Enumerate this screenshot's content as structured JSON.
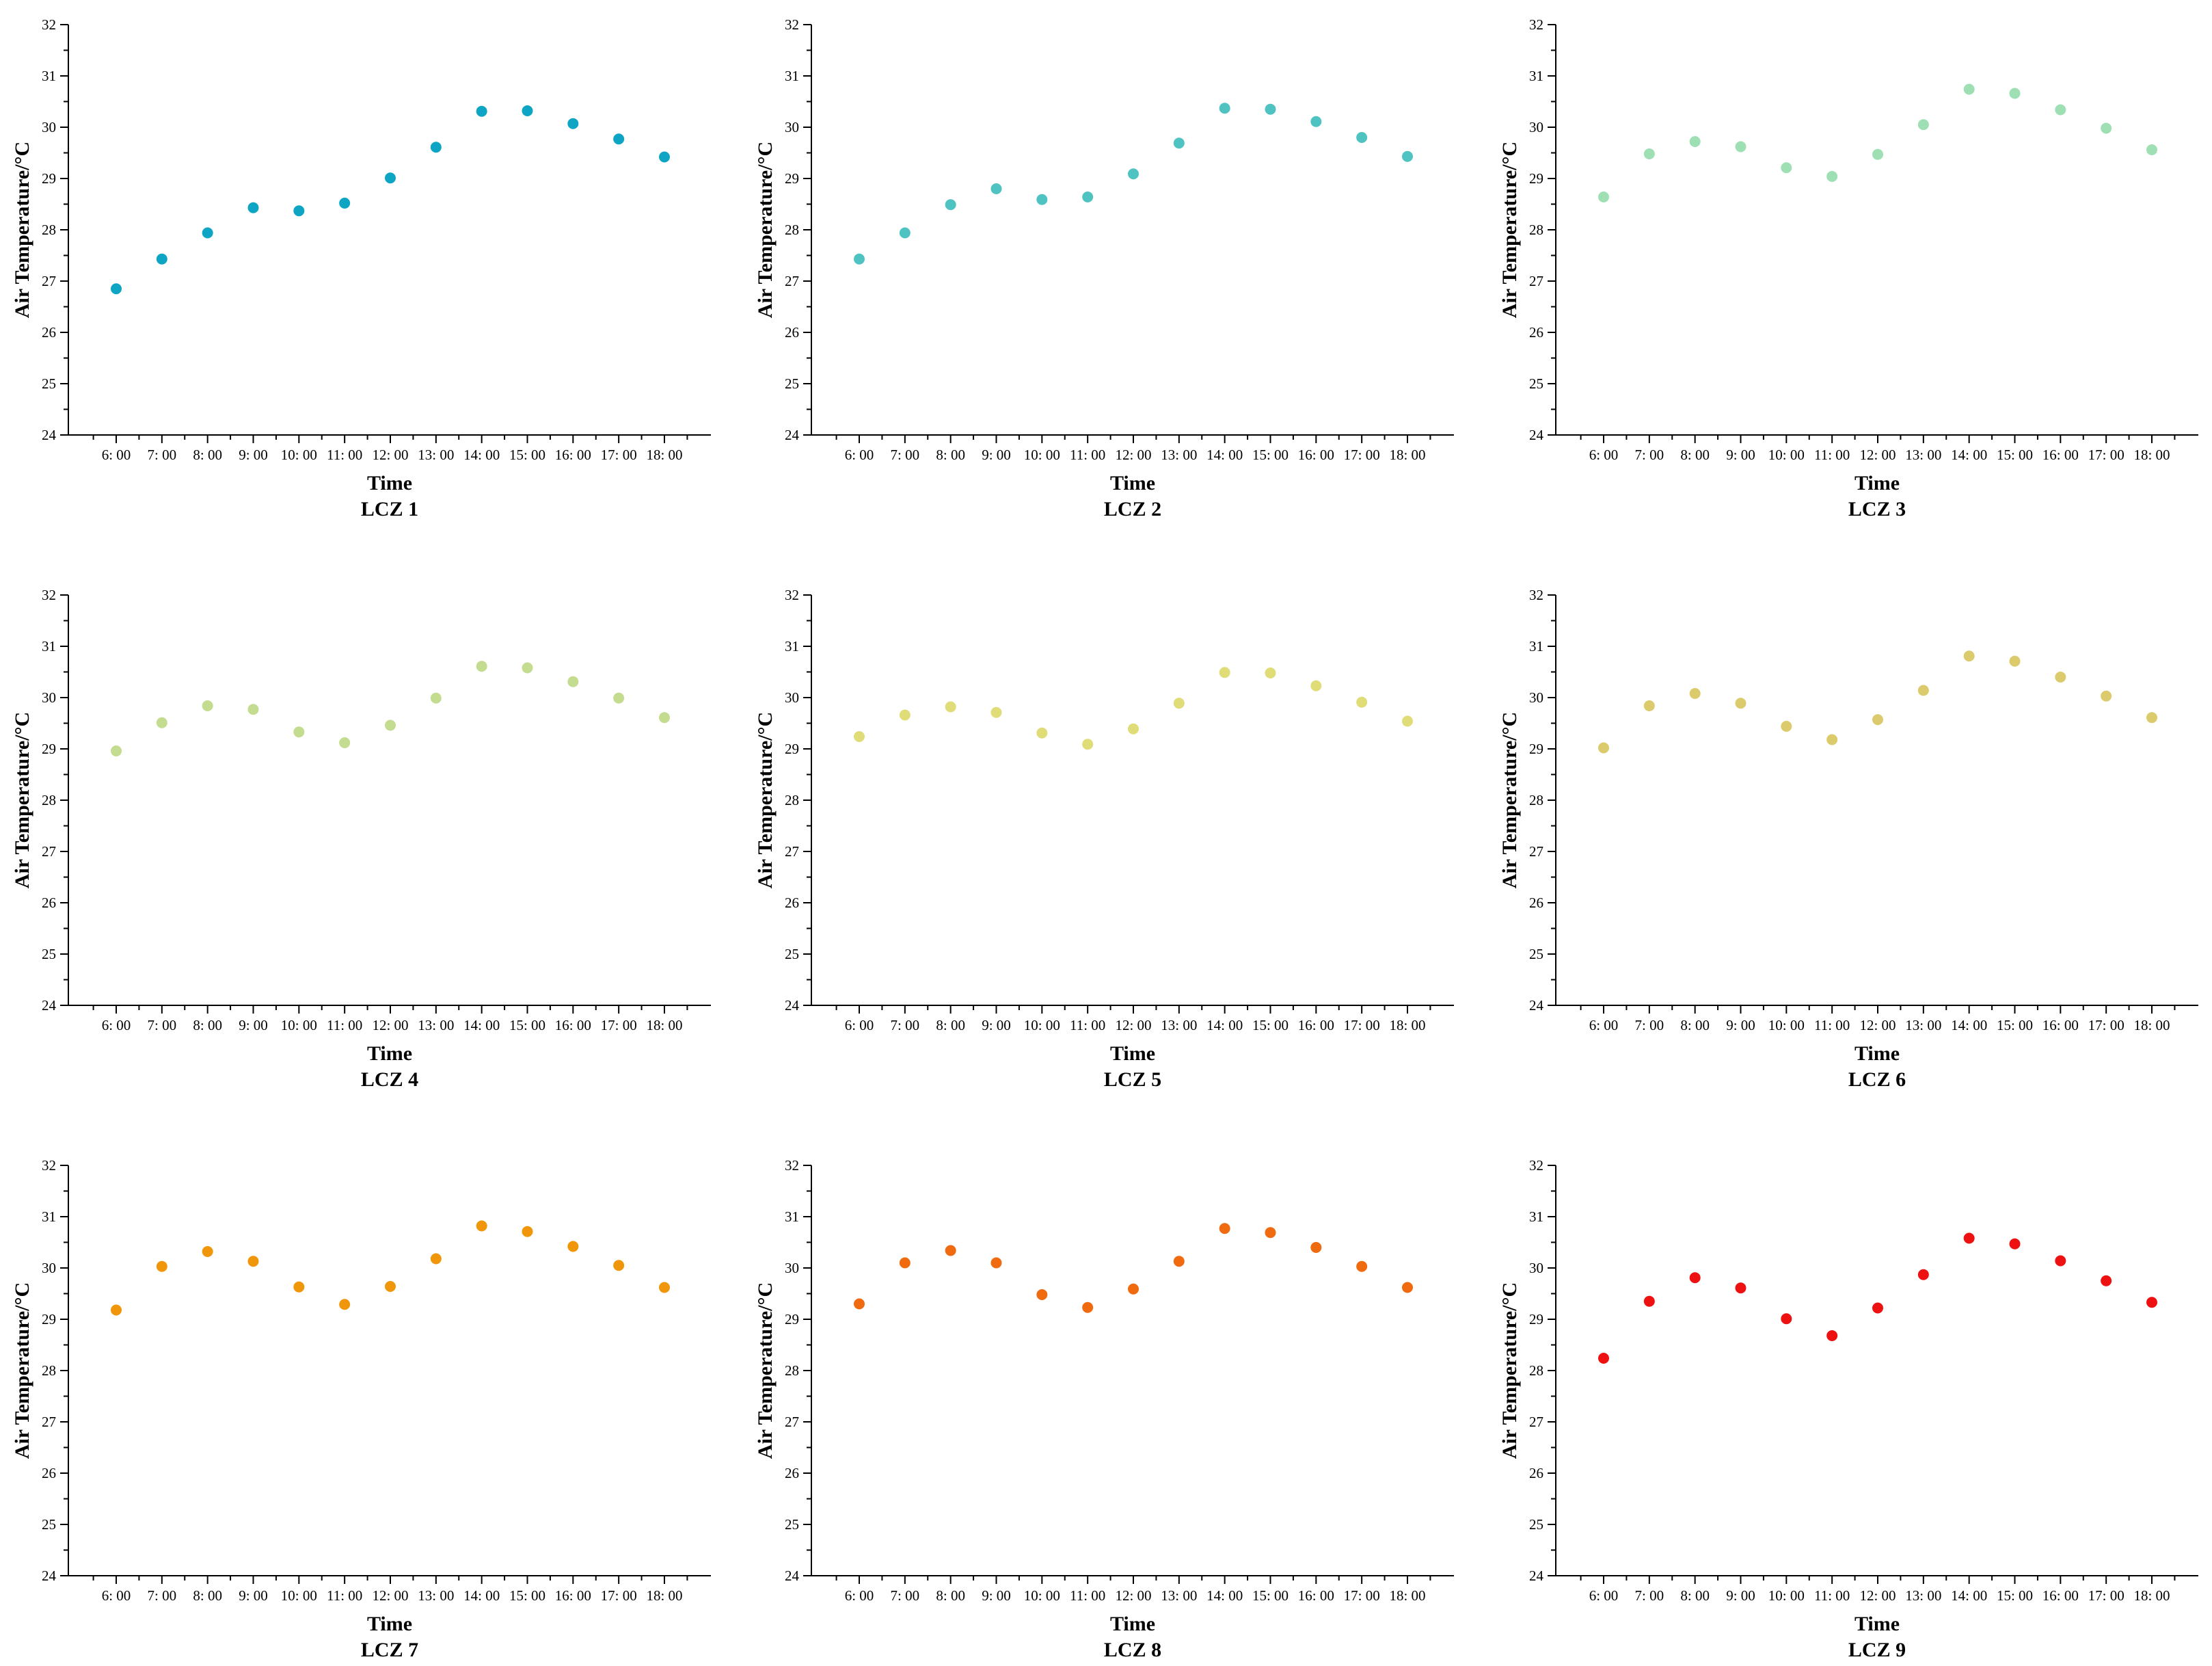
{
  "chart_data": [
    {
      "type": "scatter",
      "title": "LCZ 1",
      "xlabel": "Time",
      "ylabel": "Air Temperature/°C",
      "color": "#0ea5c4",
      "categories": [
        "6: 00",
        "7: 00",
        "8: 00",
        "9: 00",
        "10: 00",
        "11: 00",
        "12: 00",
        "13: 00",
        "14: 00",
        "15: 00",
        "16: 00",
        "17: 00",
        "18: 00"
      ],
      "values": [
        26.85,
        27.43,
        27.94,
        28.43,
        28.37,
        28.52,
        29.01,
        29.61,
        30.31,
        30.32,
        30.07,
        29.77,
        29.42
      ],
      "ylim": [
        24,
        32
      ],
      "yticks": [
        "24",
        "25",
        "26",
        "27",
        "28",
        "29",
        "30",
        "31",
        "32"
      ]
    },
    {
      "type": "scatter",
      "title": "LCZ 2",
      "xlabel": "Time",
      "ylabel": "Air Temperature/°C",
      "color": "#4fc3c1",
      "categories": [
        "6: 00",
        "7: 00",
        "8: 00",
        "9: 00",
        "10: 00",
        "11: 00",
        "12: 00",
        "13: 00",
        "14: 00",
        "15: 00",
        "16: 00",
        "17: 00",
        "18: 00"
      ],
      "values": [
        27.43,
        27.94,
        28.49,
        28.8,
        28.59,
        28.64,
        29.09,
        29.69,
        30.37,
        30.35,
        30.11,
        29.8,
        29.43
      ],
      "ylim": [
        24,
        32
      ],
      "yticks": [
        "24",
        "25",
        "26",
        "27",
        "28",
        "29",
        "30",
        "31",
        "32"
      ]
    },
    {
      "type": "scatter",
      "title": "LCZ 3",
      "xlabel": "Time",
      "ylabel": "Air Temperature/°C",
      "color": "#9ee0b4",
      "categories": [
        "6: 00",
        "7: 00",
        "8: 00",
        "9: 00",
        "10: 00",
        "11: 00",
        "12: 00",
        "13: 00",
        "14: 00",
        "15: 00",
        "16: 00",
        "17: 00",
        "18: 00"
      ],
      "values": [
        28.64,
        29.48,
        29.72,
        29.62,
        29.21,
        29.04,
        29.47,
        30.05,
        30.74,
        30.66,
        30.34,
        29.98,
        29.56
      ],
      "ylim": [
        24,
        32
      ],
      "yticks": [
        "24",
        "25",
        "26",
        "27",
        "28",
        "29",
        "30",
        "31",
        "32"
      ]
    },
    {
      "type": "scatter",
      "title": "LCZ 4",
      "xlabel": "Time",
      "ylabel": "Air Temperature/°C",
      "color": "#c3dc90",
      "categories": [
        "6: 00",
        "7: 00",
        "8: 00",
        "9: 00",
        "10: 00",
        "11: 00",
        "12: 00",
        "13: 00",
        "14: 00",
        "15: 00",
        "16: 00",
        "17: 00",
        "18: 00"
      ],
      "values": [
        28.96,
        29.51,
        29.84,
        29.77,
        29.33,
        29.12,
        29.46,
        29.99,
        30.61,
        30.58,
        30.31,
        29.99,
        29.61
      ],
      "ylim": [
        24,
        32
      ],
      "yticks": [
        "24",
        "25",
        "26",
        "27",
        "28",
        "29",
        "30",
        "31",
        "32"
      ]
    },
    {
      "type": "scatter",
      "title": "LCZ 5",
      "xlabel": "Time",
      "ylabel": "Air Temperature/°C",
      "color": "#e0dc78",
      "categories": [
        "6: 00",
        "7: 00",
        "8: 00",
        "9: 00",
        "10: 00",
        "11: 00",
        "12: 00",
        "13: 00",
        "14: 00",
        "15: 00",
        "16: 00",
        "17: 00",
        "18: 00"
      ],
      "values": [
        29.24,
        29.66,
        29.82,
        29.71,
        29.31,
        29.09,
        29.39,
        29.89,
        30.49,
        30.48,
        30.23,
        29.91,
        29.54
      ],
      "ylim": [
        24,
        32
      ],
      "yticks": [
        "24",
        "25",
        "26",
        "27",
        "28",
        "29",
        "30",
        "31",
        "32"
      ]
    },
    {
      "type": "scatter",
      "title": "LCZ 6",
      "xlabel": "Time",
      "ylabel": "Air Temperature/°C",
      "color": "#dccb6c",
      "categories": [
        "6: 00",
        "7: 00",
        "8: 00",
        "9: 00",
        "10: 00",
        "11: 00",
        "12: 00",
        "13: 00",
        "14: 00",
        "15: 00",
        "16: 00",
        "17: 00",
        "18: 00"
      ],
      "values": [
        29.02,
        29.84,
        30.08,
        29.89,
        29.44,
        29.18,
        29.57,
        30.14,
        30.81,
        30.71,
        30.4,
        30.03,
        29.61
      ],
      "ylim": [
        24,
        32
      ],
      "yticks": [
        "24",
        "25",
        "26",
        "27",
        "28",
        "29",
        "30",
        "31",
        "32"
      ]
    },
    {
      "type": "scatter",
      "title": "LCZ 7",
      "xlabel": "Time",
      "ylabel": "Air Temperature/°C",
      "color": "#f0960a",
      "categories": [
        "6: 00",
        "7: 00",
        "8: 00",
        "9: 00",
        "10: 00",
        "11: 00",
        "12: 00",
        "13: 00",
        "14: 00",
        "15: 00",
        "16: 00",
        "17: 00",
        "18: 00"
      ],
      "values": [
        29.18,
        30.03,
        30.32,
        30.13,
        29.63,
        29.29,
        29.64,
        30.18,
        30.82,
        30.71,
        30.42,
        30.05,
        29.62
      ],
      "ylim": [
        24,
        32
      ],
      "yticks": [
        "24",
        "25",
        "26",
        "27",
        "28",
        "29",
        "30",
        "31",
        "32"
      ]
    },
    {
      "type": "scatter",
      "title": "LCZ 8",
      "xlabel": "Time",
      "ylabel": "Air Temperature/°C",
      "color": "#f06a10",
      "categories": [
        "6: 00",
        "7: 00",
        "8: 00",
        "9: 00",
        "10: 00",
        "11: 00",
        "12: 00",
        "13: 00",
        "14: 00",
        "15: 00",
        "16: 00",
        "17: 00",
        "18: 00"
      ],
      "values": [
        29.3,
        30.1,
        30.34,
        30.1,
        29.48,
        29.23,
        29.59,
        30.13,
        30.77,
        30.69,
        30.4,
        30.03,
        29.62
      ],
      "ylim": [
        24,
        32
      ],
      "yticks": [
        "24",
        "25",
        "26",
        "27",
        "28",
        "29",
        "30",
        "31",
        "32"
      ]
    },
    {
      "type": "scatter",
      "title": "LCZ 9",
      "xlabel": "Time",
      "ylabel": "Air Temperature/°C",
      "color": "#ee1111",
      "categories": [
        "6: 00",
        "7: 00",
        "8: 00",
        "9: 00",
        "10: 00",
        "11: 00",
        "12: 00",
        "13: 00",
        "14: 00",
        "15: 00",
        "16: 00",
        "17: 00",
        "18: 00"
      ],
      "values": [
        28.24,
        29.35,
        29.81,
        29.61,
        29.01,
        28.68,
        29.22,
        29.87,
        30.58,
        30.47,
        30.14,
        29.75,
        29.33
      ],
      "ylim": [
        24,
        32
      ],
      "yticks": [
        "24",
        "25",
        "26",
        "27",
        "28",
        "29",
        "30",
        "31",
        "32"
      ]
    }
  ]
}
